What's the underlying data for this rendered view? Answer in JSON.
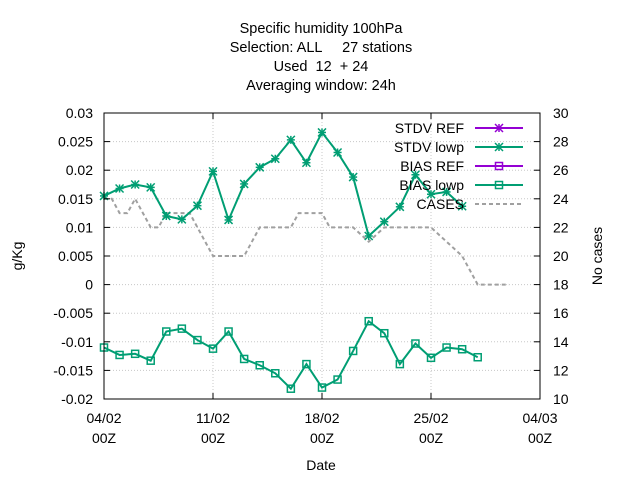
{
  "chart_data": {
    "type": "line",
    "title_lines": [
      "Specific humidity 100hPa",
      "Selection: ALL     27 stations",
      "Used  12  + 24",
      "Averaging window: 24h"
    ],
    "xlabel": "Date",
    "ylabel": "g/Kg",
    "y2label": "No cases",
    "xlim": [
      0,
      28
    ],
    "ylim": [
      -0.02,
      0.03
    ],
    "y2lim": [
      10,
      30
    ],
    "x_ticks": [
      {
        "x": 0,
        "line1": "04/02",
        "line2": "00Z"
      },
      {
        "x": 7,
        "line1": "11/02",
        "line2": "00Z"
      },
      {
        "x": 14,
        "line1": "18/02",
        "line2": "00Z"
      },
      {
        "x": 21,
        "line1": "25/02",
        "line2": "00Z"
      },
      {
        "x": 28,
        "line1": "04/03",
        "line2": "00Z"
      }
    ],
    "y_ticks": [
      "0.03",
      "0.025",
      "0.02",
      "0.015",
      "0.01",
      "0.005",
      "0",
      "-0.005",
      "-0.01",
      "-0.015",
      "-0.02"
    ],
    "y_tick_values": [
      0.03,
      0.025,
      0.02,
      0.015,
      0.01,
      0.005,
      0,
      -0.005,
      -0.01,
      -0.015,
      -0.02
    ],
    "y2_ticks": [
      "30",
      "28",
      "26",
      "24",
      "22",
      "20",
      "18",
      "16",
      "14",
      "12",
      "10"
    ],
    "y2_tick_values": [
      30,
      28,
      26,
      24,
      22,
      20,
      18,
      16,
      14,
      12,
      10
    ],
    "legend_position": "top-right",
    "colors": {
      "ref": "#9400d3",
      "lowp": "#009e73",
      "cases": "#a0a0a0",
      "grid": "#c8c8c8"
    },
    "series": [
      {
        "name": "STDV REF",
        "axis": "y",
        "x": [],
        "values": []
      },
      {
        "name": "STDV lowp",
        "axis": "y",
        "x": [
          0,
          1,
          2,
          3,
          4,
          5,
          6,
          7,
          8,
          9,
          10,
          11,
          12,
          13,
          14,
          15,
          16,
          17,
          18,
          19,
          20,
          21,
          22,
          23,
          24
        ],
        "values": [
          0.0155,
          0.0168,
          0.0175,
          0.017,
          0.012,
          0.0114,
          0.0138,
          0.0198,
          0.0113,
          0.0176,
          0.0205,
          0.022,
          0.0253,
          0.0213,
          0.0266,
          0.0231,
          0.0188,
          0.0085,
          0.011,
          0.0136,
          0.0192,
          0.0158,
          0.0162,
          0.0137,
          null
        ]
      },
      {
        "name": "BIAS REF",
        "axis": "y",
        "x": [],
        "values": []
      },
      {
        "name": "BIAS lowp",
        "axis": "y",
        "x": [
          0,
          1,
          2,
          3,
          4,
          5,
          6,
          7,
          8,
          9,
          10,
          11,
          12,
          13,
          14,
          15,
          16,
          17,
          18,
          19,
          20,
          21,
          22,
          23,
          24
        ],
        "values": [
          -0.011,
          -0.0123,
          -0.0121,
          -0.0133,
          -0.0082,
          -0.0077,
          -0.0097,
          -0.0112,
          -0.0082,
          -0.013,
          -0.0141,
          -0.0155,
          -0.0182,
          -0.0139,
          -0.018,
          -0.0166,
          -0.0116,
          -0.0064,
          -0.0085,
          -0.0139,
          -0.0103,
          -0.0128,
          -0.011,
          -0.0113,
          -0.0127
        ]
      },
      {
        "name": "CASES",
        "axis": "y2",
        "x": [
          0,
          0.5,
          1,
          1.5,
          2,
          2.5,
          3,
          3.5,
          4,
          5,
          5.5,
          6,
          6.5,
          7,
          8,
          9,
          9.5,
          10,
          11,
          12,
          12.5,
          13,
          14,
          14.5,
          15,
          16,
          17,
          18,
          19,
          20,
          21,
          22,
          23,
          24,
          25,
          26
        ],
        "values": [
          24,
          24,
          23,
          23,
          24,
          23,
          22,
          22,
          23,
          23,
          23,
          22,
          21,
          20,
          20,
          20,
          21,
          22,
          22,
          22,
          23,
          23,
          23,
          22,
          22,
          22,
          21,
          22,
          22,
          22,
          22,
          21,
          20,
          18,
          18,
          18
        ]
      }
    ]
  }
}
